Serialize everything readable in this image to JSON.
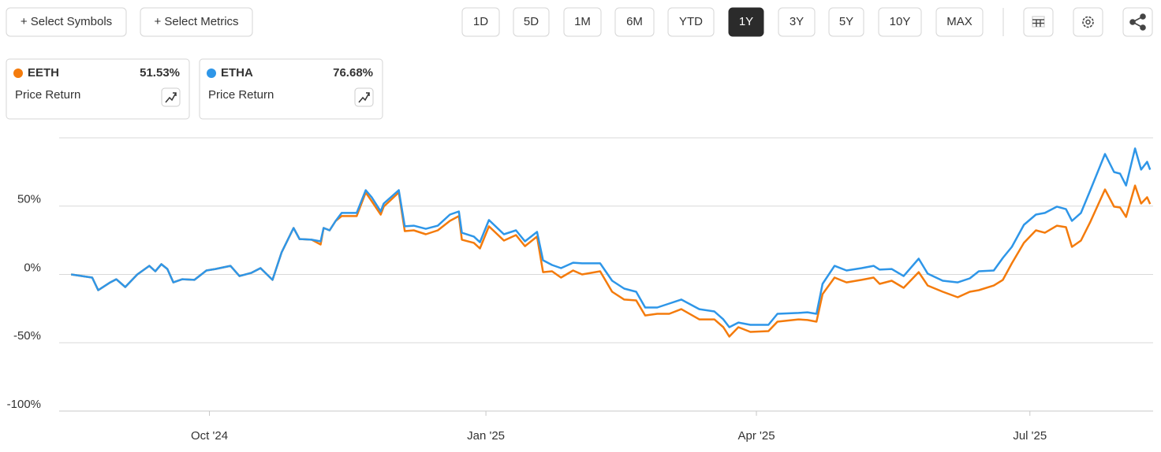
{
  "toolbar": {
    "actions": [
      "+ Select Symbols",
      "+ Select Metrics"
    ],
    "ranges": [
      {
        "label": "1D"
      },
      {
        "label": "5D"
      },
      {
        "label": "1M"
      },
      {
        "label": "6M"
      },
      {
        "label": "YTD"
      },
      {
        "label": "1Y",
        "selected": true
      },
      {
        "label": "3Y"
      },
      {
        "label": "5Y"
      },
      {
        "label": "10Y"
      },
      {
        "label": "MAX"
      }
    ]
  },
  "chart_data": {
    "type": "line",
    "x": [
      -46,
      -41,
      -39,
      -37,
      -33,
      -31,
      -28,
      -24,
      -20,
      -18,
      -16,
      -14,
      -12,
      -9,
      -5,
      -1,
      2,
      7,
      10,
      14,
      17,
      21,
      24,
      28,
      30,
      34,
      37,
      38,
      40,
      42,
      44,
      49,
      52,
      54,
      57,
      58,
      63,
      65,
      68,
      72,
      76,
      80,
      83,
      84,
      88,
      90,
      93,
      98,
      102,
      105,
      109,
      111,
      114,
      117,
      121,
      124,
      130,
      134,
      138,
      142,
      145,
      149,
      153,
      157,
      163,
      168,
      171,
      173,
      176,
      180,
      186,
      189,
      196,
      199,
      202,
      204,
      208,
      212,
      217,
      221,
      223,
      227,
      231,
      236,
      239,
      244,
      249,
      253,
      256,
      261,
      264,
      267,
      271,
      275,
      278,
      282,
      285,
      287,
      290,
      293,
      298,
      301,
      303,
      305,
      308,
      310,
      312,
      313
    ],
    "series": [
      {
        "name": "EETH",
        "color": "#f47b0c",
        "metric": "Price Return",
        "total_return": {
          "value": 51.53,
          "label": "51.53%"
        },
        "values": [
          0,
          -1.7,
          -2.3,
          -11.5,
          -5.8,
          -3.5,
          -9.2,
          0,
          6.3,
          2.3,
          7.5,
          4,
          -5.8,
          -3.5,
          -4,
          2.9,
          4,
          6.3,
          -1.2,
          1.2,
          4.6,
          -4,
          16.1,
          34,
          25.9,
          25.4,
          21.9,
          34,
          32.3,
          39.2,
          42.7,
          42.7,
          60,
          53.6,
          43.8,
          49.6,
          60,
          31.7,
          32.3,
          29.4,
          32.3,
          39.2,
          42.7,
          25.4,
          23.1,
          19,
          35.2,
          24.8,
          28.8,
          20.7,
          27.7,
          1.7,
          2.3,
          -2.3,
          2.9,
          0,
          2.3,
          -12.7,
          -18.4,
          -19,
          -30,
          -28.8,
          -28.8,
          -25.4,
          -32.9,
          -32.9,
          -38.6,
          -45.5,
          -38.6,
          -42.1,
          -41.5,
          -34.6,
          -32.9,
          -33.4,
          -34.6,
          -14.4,
          -2.3,
          -5.8,
          -4,
          -2.3,
          -6.9,
          -4.6,
          -9.8,
          1.7,
          -8.1,
          -12.7,
          -16.7,
          -12.7,
          -11.5,
          -8.1,
          -4,
          8.1,
          23.1,
          32.3,
          30.5,
          35.7,
          34.6,
          20.2,
          24.8,
          38,
          62.2,
          49.6,
          49,
          42.1,
          65.1,
          51.9,
          56.5,
          51.53
        ]
      },
      {
        "name": "ETHA",
        "color": "#2e96e8",
        "metric": "Price Return",
        "total_return": {
          "value": 76.68,
          "label": "76.68%"
        },
        "values": [
          0,
          -1.7,
          -2.3,
          -11.5,
          -5.8,
          -3.5,
          -9.2,
          0,
          6.3,
          2.3,
          7.5,
          4,
          -5.8,
          -3.5,
          -4,
          2.9,
          4,
          6.3,
          -1.2,
          1.2,
          4.6,
          -4,
          16.1,
          34,
          25.9,
          25.4,
          24.2,
          34,
          32.3,
          39.2,
          45,
          45,
          61.7,
          56.5,
          46.1,
          51.9,
          61.7,
          35.2,
          35.7,
          33.4,
          35.7,
          43.8,
          46.1,
          30.5,
          27.7,
          23.6,
          39.8,
          29.4,
          32.3,
          24.2,
          31.1,
          10.4,
          6.9,
          4.6,
          8.6,
          8.1,
          8.1,
          -4.6,
          -10.4,
          -12.7,
          -24.2,
          -24.2,
          -21.3,
          -18.4,
          -25.4,
          -27.1,
          -32.9,
          -38.6,
          -35.2,
          -36.9,
          -36.9,
          -28.8,
          -28.2,
          -27.7,
          -28.8,
          -6.9,
          6.3,
          2.9,
          4.6,
          6.3,
          3.5,
          4,
          -1.2,
          11.5,
          0.6,
          -4.6,
          -5.8,
          -2.9,
          2.3,
          2.9,
          12.1,
          20.2,
          36.3,
          43.8,
          45,
          49.6,
          47.8,
          39.2,
          45,
          61.1,
          88.2,
          74.9,
          73.8,
          65.1,
          92.2,
          76.7,
          82.4,
          76.68
        ]
      }
    ],
    "xlim": [
      -50,
      314
    ],
    "xticks": [
      {
        "value": 0,
        "label": "Oct '24"
      },
      {
        "value": 92,
        "label": "Jan '25"
      },
      {
        "value": 182,
        "label": "Apr '25"
      },
      {
        "value": 273,
        "label": "Jul '25"
      }
    ],
    "ylim": [
      -100,
      100
    ],
    "yticks": [
      {
        "value": -100,
        "label": "-100%"
      },
      {
        "value": -50,
        "label": "-50%"
      },
      {
        "value": 0,
        "label": "0%"
      },
      {
        "value": 50,
        "label": "50%"
      }
    ],
    "grid": true
  }
}
